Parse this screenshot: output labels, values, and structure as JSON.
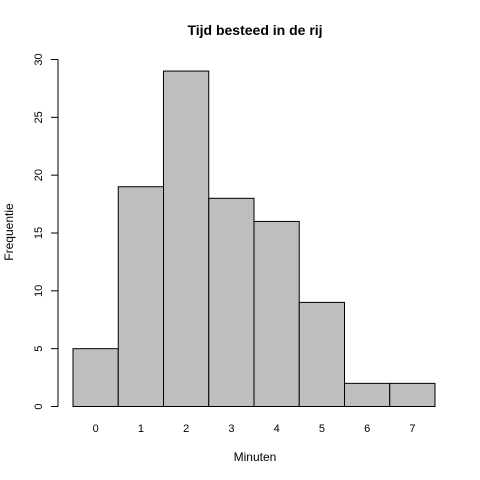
{
  "chart_data": {
    "type": "bar",
    "title": "Tijd besteed in de rij",
    "xlabel": "Minuten",
    "ylabel": "Frequentie",
    "categories": [
      "0",
      "1",
      "2",
      "3",
      "4",
      "5",
      "6",
      "7"
    ],
    "values": [
      5,
      19,
      29,
      18,
      16,
      9,
      2,
      2
    ],
    "ylim": [
      0,
      30
    ],
    "yticks": [
      "0",
      "5",
      "10",
      "15",
      "20",
      "25",
      "30"
    ],
    "grid": false,
    "colors": {
      "bar_fill": "#bebebe",
      "bar_stroke": "#000000"
    }
  }
}
